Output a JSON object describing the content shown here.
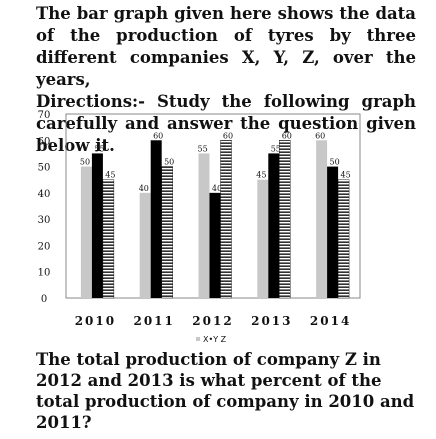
{
  "intro": {
    "line1": "The bar graph given here shows the data of the production of tyres by three different companies X, Y, Z, over the years,",
    "line2": "Directions:- Study the following graph carefully and answer the question given below it."
  },
  "question": "The total production of company Z in 2012 and 2013 is what percent of the total production of company in 2010 and 2011?",
  "legend_text": "X•Y  Z",
  "colors": {
    "X": "#c8c8c8",
    "Y": "#000000",
    "Z": "#ffffff",
    "frame": "#888888"
  },
  "chart_data": {
    "type": "bar",
    "categories": [
      "2010",
      "2011",
      "2012",
      "2013",
      "2014"
    ],
    "series": [
      {
        "name": "X",
        "values": [
          50,
          40,
          55,
          45,
          60
        ]
      },
      {
        "name": "Y",
        "values": [
          55,
          60,
          40,
          55,
          50
        ]
      },
      {
        "name": "Z",
        "values": [
          45,
          50,
          60,
          60,
          45
        ]
      }
    ],
    "yticks": [
      0,
      10,
      20,
      30,
      40,
      50,
      60,
      70
    ],
    "ylim": [
      0,
      70
    ],
    "legend": "bottom",
    "grid": false
  }
}
